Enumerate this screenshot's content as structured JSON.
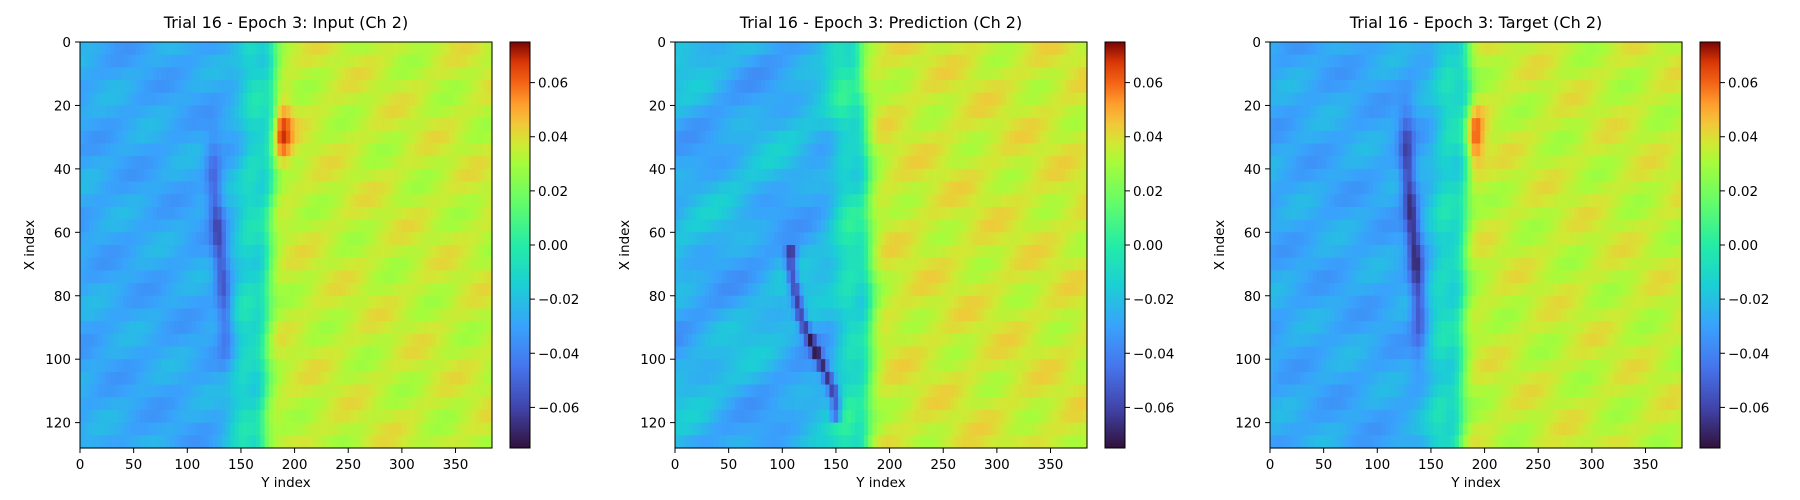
{
  "chart_data": [
    {
      "type": "heatmap",
      "title": "Trial 16 - Epoch 3: Input (Ch 2)",
      "xlabel": "Y index",
      "ylabel": "X index",
      "xlim": [
        0,
        384
      ],
      "ylim": [
        128,
        0
      ],
      "xticks": [
        0,
        50,
        100,
        150,
        200,
        250,
        300,
        350
      ],
      "yticks": [
        0,
        20,
        40,
        60,
        80,
        100,
        120
      ],
      "colormap": "turbo",
      "colorbar": {
        "range": [
          -0.075,
          0.075
        ],
        "ticks": [
          "0.06",
          "0.04",
          "0.02",
          "0.00",
          "−0.02",
          "−0.04",
          "−0.06"
        ],
        "tick_values": [
          0.06,
          0.04,
          0.02,
          0.0,
          -0.02,
          -0.04,
          -0.06
        ]
      },
      "field": {
        "left_value": -0.028,
        "right_value": 0.035,
        "front_x_at_row": [
          [
            0,
            178
          ],
          [
            20,
            182
          ],
          [
            30,
            180
          ],
          [
            60,
            175
          ],
          [
            100,
            172
          ],
          [
            128,
            170
          ]
        ],
        "front_peak": {
          "x": 188,
          "y": 28,
          "value": 0.07
        },
        "blue_streak": {
          "x": 130,
          "y_range": [
            32,
            98
          ],
          "value": -0.055
        }
      }
    },
    {
      "type": "heatmap",
      "title": "Trial 16 - Epoch 3: Prediction (Ch 2)",
      "xlabel": "Y index",
      "ylabel": "X index",
      "xlim": [
        0,
        384
      ],
      "ylim": [
        128,
        0
      ],
      "xticks": [
        0,
        50,
        100,
        150,
        200,
        250,
        300,
        350
      ],
      "yticks": [
        0,
        20,
        40,
        60,
        80,
        100,
        120
      ],
      "colormap": "turbo",
      "colorbar": {
        "range": [
          -0.075,
          0.075
        ],
        "ticks": [
          "0.06",
          "0.04",
          "0.02",
          "0.00",
          "−0.02",
          "−0.04",
          "−0.06"
        ],
        "tick_values": [
          0.06,
          0.04,
          0.02,
          0.0,
          -0.02,
          -0.04,
          -0.06
        ]
      },
      "field": {
        "left_value": -0.025,
        "right_value": 0.037,
        "front_x_at_row": [
          [
            0,
            170
          ],
          [
            30,
            178
          ],
          [
            60,
            180
          ],
          [
            90,
            182
          ],
          [
            128,
            178
          ]
        ],
        "blue_streak_path": [
          [
            108,
            72
          ],
          [
            118,
            88
          ],
          [
            140,
            104
          ],
          [
            150,
            112
          ]
        ],
        "blue_streak_value": -0.065
      }
    },
    {
      "type": "heatmap",
      "title": "Trial 16 - Epoch 3: Target (Ch 2)",
      "xlabel": "Y index",
      "ylabel": "X index",
      "xlim": [
        0,
        384
      ],
      "ylim": [
        128,
        0
      ],
      "xticks": [
        0,
        50,
        100,
        150,
        200,
        250,
        300,
        350
      ],
      "yticks": [
        0,
        20,
        40,
        60,
        80,
        100,
        120
      ],
      "colormap": "turbo",
      "colorbar": {
        "range": [
          -0.075,
          0.075
        ],
        "ticks": [
          "0.06",
          "0.04",
          "0.02",
          "0.00",
          "−0.02",
          "−0.04",
          "−0.06"
        ],
        "tick_values": [
          0.06,
          0.04,
          0.02,
          0.0,
          -0.02,
          -0.04,
          -0.06
        ]
      },
      "field": {
        "left_value": -0.028,
        "right_value": 0.035,
        "front_x_at_row": [
          [
            0,
            182
          ],
          [
            20,
            186
          ],
          [
            30,
            185
          ],
          [
            60,
            180
          ],
          [
            100,
            178
          ],
          [
            128,
            176
          ]
        ],
        "front_peak": {
          "x": 190,
          "y": 30,
          "value": 0.07
        },
        "blue_streak": {
          "x": 133,
          "y_range": [
            22,
            96
          ],
          "value": -0.065
        }
      }
    }
  ]
}
